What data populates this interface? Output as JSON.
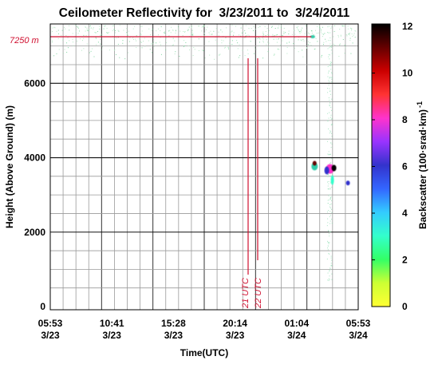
{
  "chart_data": {
    "type": "heatmap",
    "title": "Ceilometer Reflectivity for  3/23/2011 to  3/24/2011",
    "xlabel": "Time(UTC)",
    "ylabel": "Height (Above Ground) (m)",
    "x_ticks": [
      {
        "time": "05:53",
        "date": "3/23"
      },
      {
        "time": "10:41",
        "date": "3/23"
      },
      {
        "time": "15:28",
        "date": "3/23"
      },
      {
        "time": "20:14",
        "date": "3/23"
      },
      {
        "time": "01:04",
        "date": "3/24"
      },
      {
        "time": "05:53",
        "date": "3/24"
      }
    ],
    "y_ticks": [
      0,
      2000,
      4000,
      6000
    ],
    "ylim": [
      0,
      7250
    ],
    "grid": true,
    "colorbar": {
      "label": "Backscatter (100·srad·km)",
      "label_exponent": "-1",
      "ticks": [
        0,
        2,
        4,
        6,
        8,
        10,
        12
      ],
      "range": [
        0,
        12
      ],
      "stops": [
        "#ffff33",
        "#ccff33",
        "#33ff66",
        "#33ffcc",
        "#33ccff",
        "#3366ff",
        "#3333cc",
        "#9933ff",
        "#ff33cc",
        "#ff3333",
        "#cc0000",
        "#660000",
        "#000000"
      ]
    },
    "annotations": {
      "top_label": "7250 m",
      "line_1_label": "21 UTC",
      "line_2_label": "22 UTC"
    },
    "features": [
      {
        "kind": "cloud",
        "x_hours": 20.6,
        "height_m": 3850,
        "value": 11
      },
      {
        "kind": "cloud",
        "x_hours": 21.8,
        "height_m": 3700,
        "value": 8
      },
      {
        "kind": "cloud",
        "x_hours": 23.2,
        "height_m": 3320,
        "value": 6
      },
      {
        "kind": "speckle",
        "height_min_m": 6600,
        "height_max_m": 7250,
        "value": 2
      }
    ],
    "colors": {
      "annotation": "#d01030",
      "grid": "#999999",
      "major_grid": "#000000"
    }
  }
}
